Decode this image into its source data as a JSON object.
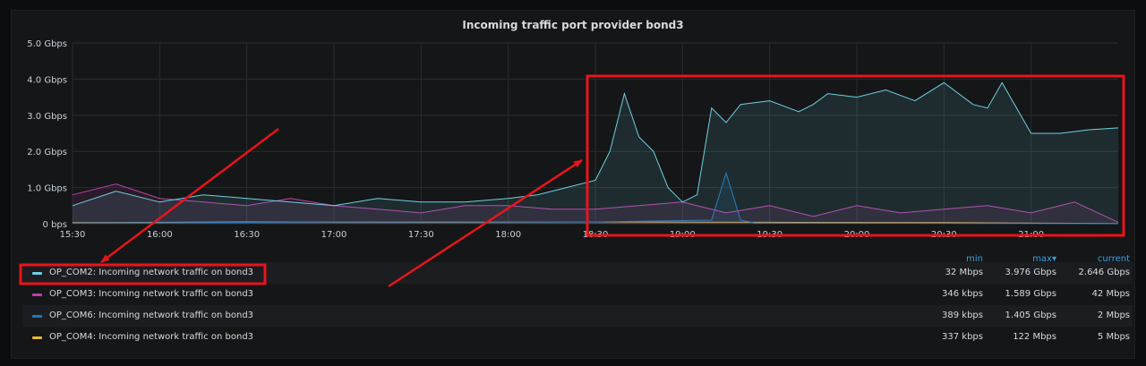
{
  "panel": {
    "title": "Incoming traffic port provider bond3"
  },
  "legend": {
    "headers": {
      "min": "min",
      "max": "max▾",
      "current": "current"
    },
    "rows": [
      {
        "name": "OP_COM2: Incoming network traffic on bond3",
        "color": "#6ed0e0",
        "min": "32 Mbps",
        "max": "3.976 Gbps",
        "current": "2.646 Gbps"
      },
      {
        "name": "OP_COM3: Incoming network traffic on bond3",
        "color": "#ba43a9",
        "min": "346 kbps",
        "max": "1.589 Gbps",
        "current": "42 Mbps"
      },
      {
        "name": "OP_COM6: Incoming network traffic on bond3",
        "color": "#1f78c1",
        "min": "389 kbps",
        "max": "1.405 Gbps",
        "current": "2 Mbps"
      },
      {
        "name": "OP_COM4: Incoming network traffic on bond3",
        "color": "#eab839",
        "min": "337 kbps",
        "max": "122 Mbps",
        "current": "5 Mbps"
      }
    ]
  },
  "chart_data": {
    "type": "area",
    "title": "Incoming traffic port provider bond3",
    "x_ticks": [
      "15:30",
      "16:00",
      "16:30",
      "17:00",
      "17:30",
      "18:00",
      "18:30",
      "19:00",
      "19:30",
      "20:00",
      "20:30",
      "21:00"
    ],
    "y_ticks": [
      "0 bps",
      "1.0 Gbps",
      "2.0 Gbps",
      "3.0 Gbps",
      "4.0 Gbps",
      "5.0 Gbps"
    ],
    "ylim": [
      0,
      5
    ],
    "y_unit": "Gbps",
    "x_range": [
      "15:30",
      "21:30"
    ],
    "grid": true,
    "series": [
      {
        "name": "OP_COM2: Incoming network traffic on bond3",
        "color": "#6ed0e0",
        "x": [
          "15:30",
          "15:45",
          "16:00",
          "16:15",
          "16:30",
          "16:45",
          "17:00",
          "17:15",
          "17:30",
          "17:45",
          "18:00",
          "18:10",
          "18:20",
          "18:30",
          "18:35",
          "18:40",
          "18:45",
          "18:50",
          "18:55",
          "19:00",
          "19:05",
          "19:10",
          "19:15",
          "19:20",
          "19:30",
          "19:40",
          "19:45",
          "19:50",
          "20:00",
          "20:10",
          "20:20",
          "20:30",
          "20:40",
          "20:45",
          "20:50",
          "21:00",
          "21:10",
          "21:20",
          "21:30"
        ],
        "values": [
          0.5,
          0.9,
          0.6,
          0.8,
          0.7,
          0.6,
          0.5,
          0.7,
          0.6,
          0.6,
          0.7,
          0.8,
          1.0,
          1.2,
          2.0,
          3.6,
          2.4,
          2.0,
          1.0,
          0.6,
          0.8,
          3.2,
          2.8,
          3.3,
          3.4,
          3.1,
          3.3,
          3.6,
          3.5,
          3.7,
          3.4,
          3.9,
          3.3,
          3.2,
          3.9,
          2.5,
          2.5,
          2.6,
          2.65
        ]
      },
      {
        "name": "OP_COM3: Incoming network traffic on bond3",
        "color": "#ba43a9",
        "x": [
          "15:30",
          "15:45",
          "16:00",
          "16:15",
          "16:30",
          "16:45",
          "17:00",
          "17:15",
          "17:30",
          "17:45",
          "18:00",
          "18:15",
          "18:30",
          "18:45",
          "19:00",
          "19:15",
          "19:30",
          "19:45",
          "20:00",
          "20:15",
          "20:30",
          "20:45",
          "21:00",
          "21:15",
          "21:30"
        ],
        "values": [
          0.8,
          1.1,
          0.7,
          0.6,
          0.5,
          0.7,
          0.5,
          0.4,
          0.3,
          0.5,
          0.5,
          0.4,
          0.4,
          0.5,
          0.6,
          0.3,
          0.5,
          0.2,
          0.5,
          0.3,
          0.4,
          0.5,
          0.3,
          0.6,
          0.04
        ]
      },
      {
        "name": "OP_COM6: Incoming network traffic on bond3",
        "color": "#1f78c1",
        "x": [
          "15:30",
          "17:00",
          "18:30",
          "19:10",
          "19:15",
          "19:20",
          "19:25",
          "21:30"
        ],
        "values": [
          0.02,
          0.05,
          0.05,
          0.1,
          1.4,
          0.1,
          0.02,
          0.002
        ]
      },
      {
        "name": "OP_COM4: Incoming network traffic on bond3",
        "color": "#eab839",
        "x": [
          "15:30",
          "16:30",
          "17:30",
          "18:30",
          "19:30",
          "20:30",
          "21:30"
        ],
        "values": [
          0.03,
          0.05,
          0.04,
          0.05,
          0.04,
          0.03,
          0.005
        ]
      }
    ]
  }
}
